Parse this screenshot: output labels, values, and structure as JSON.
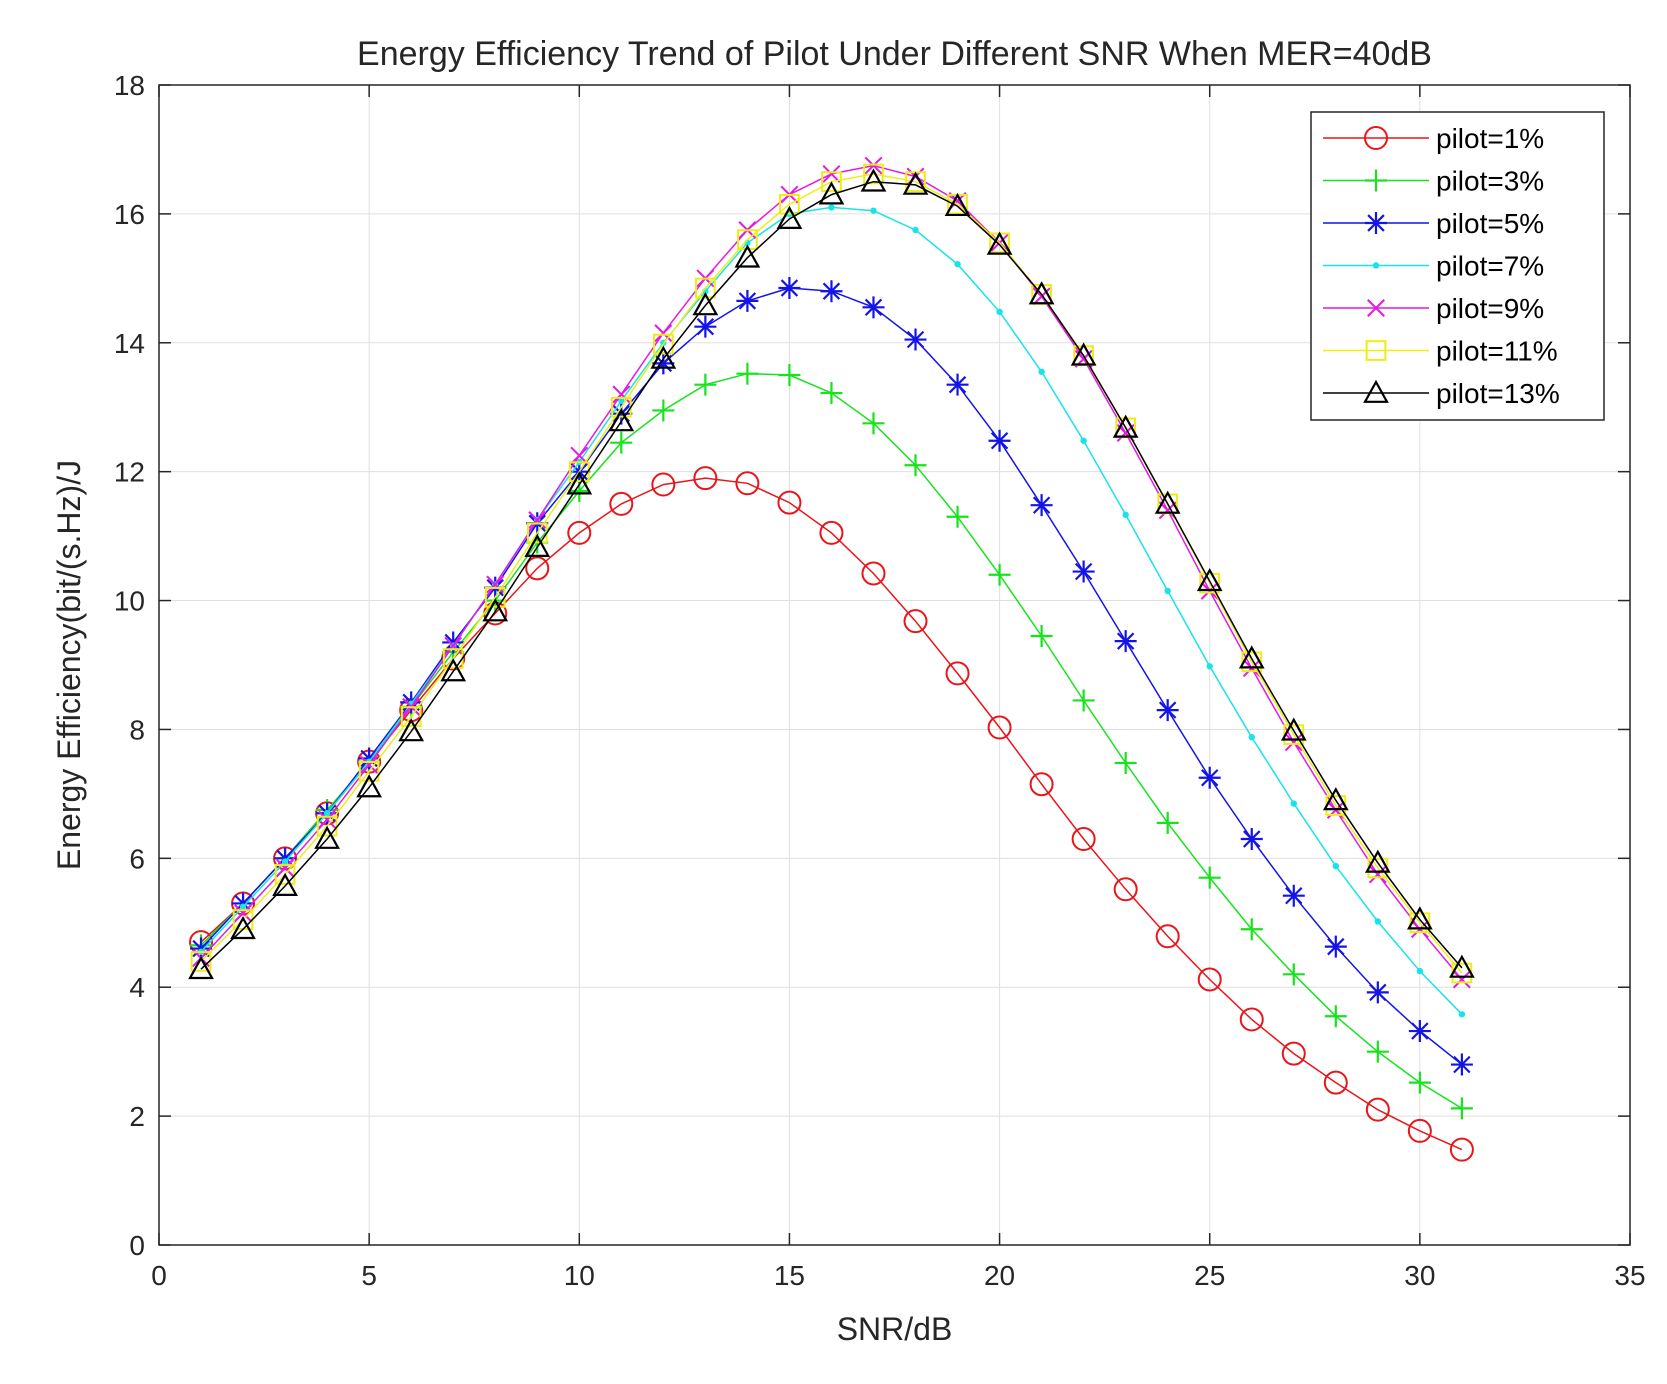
{
  "chart_data": {
    "type": "line",
    "title": "Energy Efficiency Trend of Pilot Under Different SNR When MER=40dB",
    "xlabel": "SNR/dB",
    "ylabel": "Energy Efficiency(bit/(s.Hz)/J",
    "xlim": [
      0,
      35
    ],
    "ylim": [
      0,
      18
    ],
    "xticks": [
      0,
      5,
      10,
      15,
      20,
      25,
      30,
      35
    ],
    "yticks": [
      0,
      2,
      4,
      6,
      8,
      10,
      12,
      14,
      16,
      18
    ],
    "grid": true,
    "legend_position": "top-right",
    "x": [
      1,
      2,
      3,
      4,
      5,
      6,
      7,
      8,
      9,
      10,
      11,
      12,
      13,
      14,
      15,
      16,
      17,
      18,
      19,
      20,
      21,
      22,
      23,
      24,
      25,
      26,
      27,
      28,
      29,
      30,
      31
    ],
    "series": [
      {
        "name": "pilot=1%",
        "color": "#e8161b",
        "marker": "circle",
        "values": [
          4.7,
          5.3,
          6.0,
          6.7,
          7.5,
          8.3,
          9.1,
          9.8,
          10.5,
          11.05,
          11.5,
          11.8,
          11.9,
          11.82,
          11.52,
          11.05,
          10.42,
          9.68,
          8.87,
          8.03,
          7.15,
          6.3,
          5.52,
          4.79,
          4.12,
          3.5,
          2.97,
          2.52,
          2.1,
          1.77,
          1.48
        ]
      },
      {
        "name": "pilot=3%",
        "color": "#17e31d",
        "marker": "plus",
        "values": [
          4.65,
          5.3,
          6.0,
          6.75,
          7.5,
          8.35,
          9.2,
          10.0,
          10.9,
          11.7,
          12.45,
          12.95,
          13.35,
          13.52,
          13.5,
          13.22,
          12.75,
          12.1,
          11.3,
          10.4,
          9.45,
          8.45,
          7.48,
          6.55,
          5.7,
          4.9,
          4.2,
          3.55,
          3.0,
          2.52,
          2.12
        ]
      },
      {
        "name": "pilot=5%",
        "color": "#1414e6",
        "marker": "asterisk",
        "values": [
          4.6,
          5.3,
          6.0,
          6.7,
          7.55,
          8.42,
          9.35,
          10.2,
          11.2,
          12.0,
          12.9,
          13.68,
          14.25,
          14.65,
          14.85,
          14.8,
          14.55,
          14.05,
          13.35,
          12.48,
          11.48,
          10.45,
          9.37,
          8.3,
          7.25,
          6.3,
          5.42,
          4.63,
          3.92,
          3.32,
          2.8
        ]
      },
      {
        "name": "pilot=7%",
        "color": "#19e3e8",
        "marker": "dot",
        "values": [
          4.55,
          5.25,
          5.95,
          6.7,
          7.5,
          8.4,
          9.3,
          10.25,
          11.25,
          12.15,
          13.1,
          14.0,
          14.8,
          15.55,
          16.0,
          16.1,
          16.05,
          15.75,
          15.22,
          14.48,
          13.55,
          12.48,
          11.33,
          10.15,
          8.98,
          7.88,
          6.85,
          5.88,
          5.02,
          4.25,
          3.58
        ]
      },
      {
        "name": "pilot=9%",
        "color": "#e41ae4",
        "marker": "cross",
        "values": [
          4.45,
          5.15,
          5.85,
          6.6,
          7.45,
          8.35,
          9.3,
          10.25,
          11.25,
          12.25,
          13.2,
          14.15,
          15.0,
          15.75,
          16.3,
          16.62,
          16.75,
          16.58,
          16.2,
          15.55,
          14.72,
          13.75,
          12.6,
          11.4,
          10.15,
          8.95,
          7.8,
          6.75,
          5.75,
          4.9,
          4.12
        ]
      },
      {
        "name": "pilot=11%",
        "color": "#eded16",
        "marker": "square",
        "values": [
          4.4,
          5.05,
          5.75,
          6.5,
          7.35,
          8.2,
          9.1,
          10.05,
          11.05,
          12.0,
          13.0,
          13.98,
          14.85,
          15.6,
          16.15,
          16.5,
          16.62,
          16.5,
          16.15,
          15.55,
          14.75,
          13.8,
          12.68,
          11.5,
          10.27,
          9.05,
          7.92,
          6.82,
          5.85,
          5.0,
          4.22
        ]
      },
      {
        "name": "pilot=13%",
        "color": "#000000",
        "marker": "triangle",
        "values": [
          4.28,
          4.9,
          5.57,
          6.3,
          7.1,
          7.97,
          8.9,
          9.83,
          10.83,
          11.8,
          12.78,
          13.75,
          14.58,
          15.32,
          15.92,
          16.3,
          16.5,
          16.45,
          16.12,
          15.52,
          14.75,
          13.8,
          12.68,
          11.5,
          10.3,
          9.1,
          7.98,
          6.9,
          5.93,
          5.05,
          4.3
        ]
      }
    ]
  }
}
